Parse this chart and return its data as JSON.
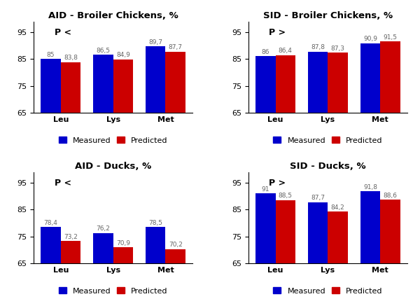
{
  "subplots": [
    {
      "title": "AID - Broiler Chickens, %",
      "p_label": "P <",
      "categories": [
        "Leu",
        "Lys",
        "Met"
      ],
      "measured": [
        85,
        86.5,
        89.7
      ],
      "predicted": [
        83.8,
        84.9,
        87.7
      ],
      "ylim": [
        65,
        99
      ],
      "yticks": [
        65,
        75,
        85,
        95
      ]
    },
    {
      "title": "SID - Broiler Chickens, %",
      "p_label": "P >",
      "categories": [
        "Leu",
        "Lys",
        "Met"
      ],
      "measured": [
        86,
        87.8,
        90.9
      ],
      "predicted": [
        86.4,
        87.3,
        91.5
      ],
      "ylim": [
        65,
        99
      ],
      "yticks": [
        65,
        75,
        85,
        95
      ]
    },
    {
      "title": "AID - Ducks, %",
      "p_label": "P <",
      "categories": [
        "Leu",
        "Lys",
        "Met"
      ],
      "measured": [
        78.4,
        76.2,
        78.5
      ],
      "predicted": [
        73.2,
        70.9,
        70.2
      ],
      "ylim": [
        65,
        99
      ],
      "yticks": [
        65,
        75,
        85,
        95
      ]
    },
    {
      "title": "SID - Ducks, %",
      "p_label": "P >",
      "categories": [
        "Leu",
        "Lys",
        "Met"
      ],
      "measured": [
        91,
        87.7,
        91.8
      ],
      "predicted": [
        88.5,
        84.2,
        88.6
      ],
      "ylim": [
        65,
        99
      ],
      "yticks": [
        65,
        75,
        85,
        95
      ]
    }
  ],
  "bar_color_measured": "#0000CC",
  "bar_color_predicted": "#CC0000",
  "bar_width": 0.38,
  "legend_labels": [
    "Measured",
    "Predicted"
  ],
  "value_label_color": "#666666",
  "value_fontsize": 6.5,
  "title_fontsize": 9.5,
  "axis_label_fontsize": 8,
  "tick_fontsize": 8,
  "p_fontsize": 9,
  "background_color": "#ffffff"
}
